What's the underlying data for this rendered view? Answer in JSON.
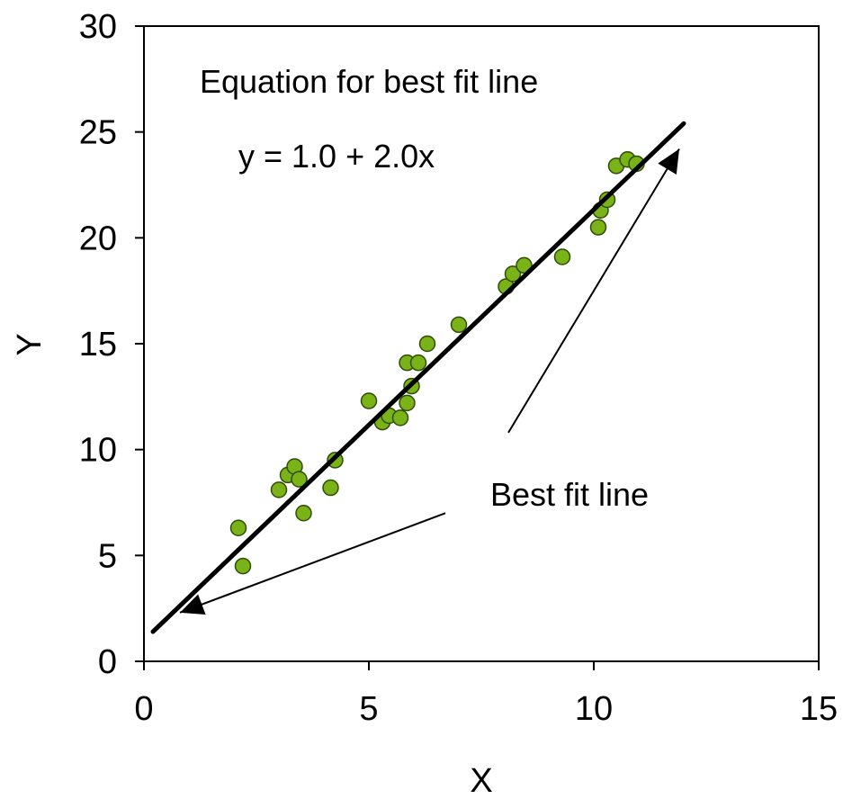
{
  "chart_data": {
    "type": "scatter",
    "title": "",
    "xlabel": "X",
    "ylabel": "Y",
    "xlim": [
      0,
      15
    ],
    "ylim": [
      0,
      30
    ],
    "x_ticks": [
      0,
      5,
      10,
      15
    ],
    "y_ticks": [
      0,
      5,
      10,
      15,
      20,
      25,
      30
    ],
    "x_tick_labels": [
      "0",
      "5",
      "10",
      "15"
    ],
    "y_tick_labels": [
      "0",
      "5",
      "10",
      "15",
      "20",
      "25",
      "30"
    ],
    "grid": false,
    "colors": {
      "points": "#7ab317",
      "point_edge": "#2f4d06",
      "line": "#000000"
    },
    "series": [
      {
        "type": "scatter",
        "points": [
          {
            "x": 2.1,
            "y": 6.3
          },
          {
            "x": 2.2,
            "y": 4.5
          },
          {
            "x": 3.0,
            "y": 8.1
          },
          {
            "x": 3.2,
            "y": 8.8
          },
          {
            "x": 3.35,
            "y": 9.2
          },
          {
            "x": 3.45,
            "y": 8.6
          },
          {
            "x": 3.55,
            "y": 7.0
          },
          {
            "x": 4.15,
            "y": 8.2
          },
          {
            "x": 4.25,
            "y": 9.5
          },
          {
            "x": 5.0,
            "y": 12.3
          },
          {
            "x": 5.3,
            "y": 11.3
          },
          {
            "x": 5.45,
            "y": 11.6
          },
          {
            "x": 5.7,
            "y": 11.5
          },
          {
            "x": 5.85,
            "y": 12.2
          },
          {
            "x": 5.85,
            "y": 14.1
          },
          {
            "x": 5.95,
            "y": 13.0
          },
          {
            "x": 6.1,
            "y": 14.1
          },
          {
            "x": 6.3,
            "y": 15.0
          },
          {
            "x": 7.0,
            "y": 15.9
          },
          {
            "x": 8.05,
            "y": 17.7
          },
          {
            "x": 8.2,
            "y": 18.3
          },
          {
            "x": 8.45,
            "y": 18.7
          },
          {
            "x": 9.3,
            "y": 19.1
          },
          {
            "x": 10.1,
            "y": 20.5
          },
          {
            "x": 10.15,
            "y": 21.3
          },
          {
            "x": 10.3,
            "y": 21.8
          },
          {
            "x": 10.5,
            "y": 23.4
          },
          {
            "x": 10.75,
            "y": 23.7
          },
          {
            "x": 10.95,
            "y": 23.5
          }
        ]
      },
      {
        "type": "line",
        "points": [
          {
            "x": 0.2,
            "y": 1.4
          },
          {
            "x": 12.0,
            "y": 25.4
          }
        ]
      }
    ],
    "annotations": [
      {
        "id": "equation_title",
        "text": "Equation for best fit line"
      },
      {
        "id": "equation",
        "text": "y = 1.0 + 2.0x"
      },
      {
        "id": "best_fit_label",
        "text": "Best fit line"
      }
    ],
    "arrows": [
      {
        "from": {
          "x": 6.7,
          "y": 7.0
        },
        "to": {
          "x": 0.8,
          "y": 2.3
        }
      },
      {
        "from": {
          "x": 8.1,
          "y": 10.8
        },
        "to": {
          "x": 11.9,
          "y": 24.2
        }
      }
    ]
  }
}
